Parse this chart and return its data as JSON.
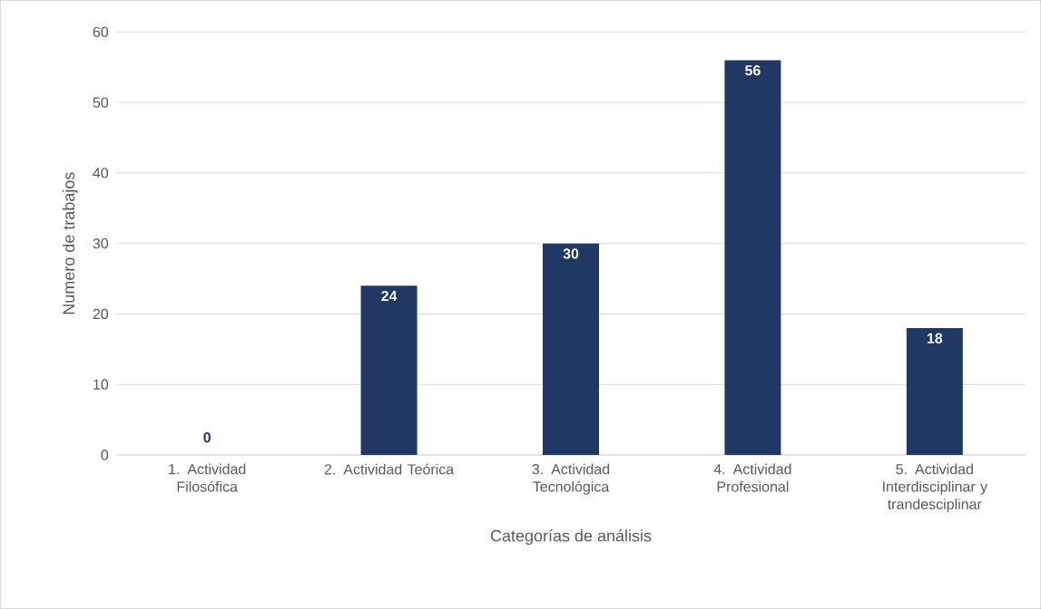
{
  "chart_data": {
    "type": "bar",
    "xlabel": "Categorías de análisis",
    "ylabel": "Numero de trabajos",
    "categories": [
      "1. Actividad Filosófica",
      "2. Actividad Teórica",
      "3. Actividad Tecnológica",
      "4. Actividad Profesional",
      "5. Actividad Interdisciplinar y trandesciplinar"
    ],
    "values": [
      0,
      24,
      30,
      56,
      18
    ],
    "color": "#1f3864",
    "ylim": [
      0,
      60
    ],
    "yticks": [
      0,
      10,
      20,
      30,
      40,
      50,
      60
    ],
    "grid": "y",
    "data_labels": true
  }
}
